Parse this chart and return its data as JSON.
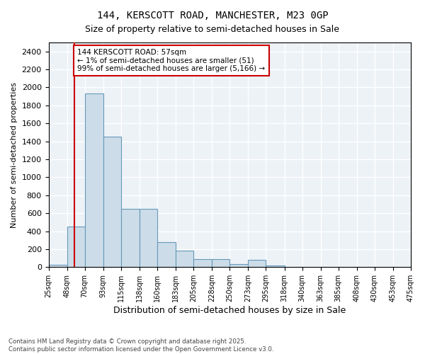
{
  "title_line1": "144, KERSCOTT ROAD, MANCHESTER, M23 0GP",
  "title_line2": "Size of property relative to semi-detached houses in Sale",
  "xlabel": "Distribution of semi-detached houses by size in Sale",
  "ylabel": "Number of semi-detached properties",
  "footnote": "Contains HM Land Registry data © Crown copyright and database right 2025.\nContains public sector information licensed under the Open Government Licence v3.0.",
  "annotation_title": "144 KERSCOTT ROAD: 57sqm",
  "annotation_line1": "← 1% of semi-detached houses are smaller (51)",
  "annotation_line2": "99% of semi-detached houses are larger (5,166) →",
  "property_sqm": 57,
  "bar_color": "#ccdce8",
  "bar_edge_color": "#6699bb",
  "vline_color": "#cc0000",
  "annotation_box_edgecolor": "#cc0000",
  "background_color": "#edf2f7",
  "grid_color": "#ffffff",
  "bin_edges": [
    25,
    48,
    70,
    93,
    115,
    138,
    160,
    183,
    205,
    228,
    250,
    273,
    295,
    318,
    340,
    363,
    385,
    408,
    430,
    453,
    475
  ],
  "bin_labels": [
    "25sqm",
    "48sqm",
    "70sqm",
    "93sqm",
    "115sqm",
    "138sqm",
    "160sqm",
    "183sqm",
    "205sqm",
    "228sqm",
    "250sqm",
    "273sqm",
    "295sqm",
    "318sqm",
    "340sqm",
    "363sqm",
    "385sqm",
    "408sqm",
    "430sqm",
    "453sqm",
    "475sqm"
  ],
  "counts": [
    30,
    450,
    1930,
    1450,
    650,
    650,
    280,
    185,
    90,
    90,
    35,
    80,
    15,
    5,
    2,
    0,
    0,
    0,
    0,
    0
  ],
  "ylim": [
    0,
    2500
  ],
  "yticks": [
    0,
    200,
    400,
    600,
    800,
    1000,
    1200,
    1400,
    1600,
    1800,
    2000,
    2200,
    2400
  ]
}
